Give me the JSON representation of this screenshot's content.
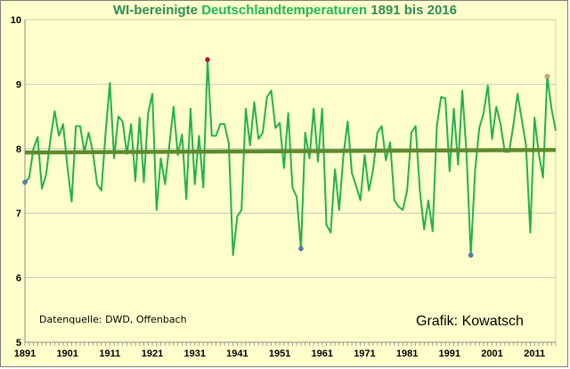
{
  "chart_data": {
    "type": "line",
    "title_parts": [
      "WI-bereinigte ",
      "Deutschlandtemperaturen",
      " 1891 bis 2016"
    ],
    "xlabel": "",
    "ylabel": "",
    "ylim": [
      5,
      10
    ],
    "xlim": [
      1891,
      2016
    ],
    "yticks": [
      5,
      6,
      7,
      8,
      9,
      10
    ],
    "xticks": [
      1891,
      1901,
      1911,
      1921,
      1931,
      1941,
      1951,
      1961,
      1971,
      1981,
      1991,
      2001,
      2011
    ],
    "grid": "horizontal",
    "series": [
      {
        "color": "#22b24c",
        "x_start": 1891,
        "values": [
          7.48,
          7.55,
          8.0,
          8.18,
          7.38,
          7.6,
          8.15,
          8.58,
          8.2,
          8.38,
          7.72,
          7.18,
          8.35,
          8.35,
          7.95,
          8.25,
          7.95,
          7.45,
          7.35,
          8.25,
          9.02,
          7.85,
          8.5,
          8.42,
          7.92,
          8.38,
          7.5,
          8.48,
          7.48,
          8.55,
          8.85,
          7.05,
          7.85,
          7.45,
          8.05,
          8.65,
          7.9,
          8.22,
          7.22,
          8.62,
          7.45,
          8.2,
          7.4,
          9.38,
          8.2,
          8.2,
          8.38,
          8.38,
          8.08,
          6.35,
          6.95,
          7.05,
          8.62,
          8.05,
          8.72,
          8.15,
          8.25,
          8.8,
          8.9,
          8.32,
          8.4,
          7.7,
          8.55,
          7.4,
          7.25,
          6.45,
          8.25,
          7.85,
          8.62,
          7.8,
          8.62,
          6.82,
          6.7,
          7.68,
          7.05,
          7.9,
          8.42,
          7.62,
          7.42,
          7.2,
          7.9,
          7.35,
          7.68,
          8.25,
          8.35,
          7.82,
          8.1,
          7.2,
          7.1,
          7.05,
          7.35,
          8.25,
          8.35,
          7.35,
          6.75,
          7.2,
          6.72,
          8.35,
          8.8,
          8.78,
          7.65,
          8.62,
          7.75,
          8.9,
          7.9,
          6.35,
          7.65,
          8.32,
          8.55,
          8.98,
          8.15,
          8.65,
          8.38,
          7.95,
          7.95,
          8.35,
          8.85,
          8.45,
          8.05,
          6.7,
          8.48,
          7.92,
          7.55,
          9.12,
          8.62,
          8.28
        ]
      },
      {
        "type": "trend",
        "color": "#5f8a2f",
        "from": [
          1891,
          7.94
        ],
        "to": [
          2016,
          7.98
        ]
      }
    ],
    "highlights": [
      {
        "year": 1891,
        "value": 7.48,
        "color": "#4a7ebb"
      },
      {
        "year": 1934,
        "value": 9.38,
        "color": "#c0103a"
      },
      {
        "year": 1956,
        "value": 6.45,
        "color": "#4a7ebb"
      },
      {
        "year": 1996,
        "value": 6.35,
        "color": "#4a7ebb"
      },
      {
        "year": 2014,
        "value": 9.12,
        "color": "#e8a070"
      }
    ]
  },
  "source_text": "Datenquelle: DWD, Offenbach",
  "credit_text": "Grafik: Kowatsch"
}
